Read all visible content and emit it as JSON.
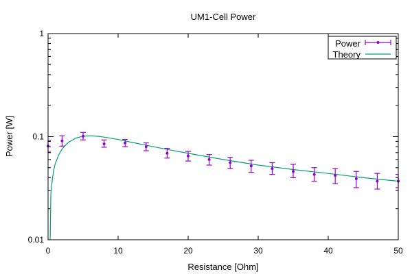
{
  "chart_data": {
    "type": "scatter",
    "title": "UM1-Cell Power",
    "xlabel": "Resistance [Ohm]",
    "ylabel": "Power [W]",
    "xlim": [
      0,
      50
    ],
    "ylim": [
      0.01,
      1
    ],
    "yscale": "log",
    "grid": false,
    "legend_position": "top-right",
    "x_ticks": [
      0,
      10,
      20,
      30,
      40,
      50
    ],
    "x_tick_labels": [
      "0",
      "10",
      "20",
      "30",
      "40",
      "50"
    ],
    "y_ticks": [
      0.01,
      0.1,
      1
    ],
    "y_tick_labels": [
      "0.01",
      "0.1",
      "1"
    ],
    "series": [
      {
        "name": "Power",
        "kind": "points-with-errorbars",
        "color": "#9400d3",
        "points": [
          {
            "x": 0,
            "y": 0.081,
            "lo": 0.071,
            "hi": 0.092
          },
          {
            "x": 2,
            "y": 0.091,
            "lo": 0.081,
            "hi": 0.102
          },
          {
            "x": 5,
            "y": 0.101,
            "lo": 0.093,
            "hi": 0.11
          },
          {
            "x": 8,
            "y": 0.085,
            "lo": 0.079,
            "hi": 0.093
          },
          {
            "x": 11,
            "y": 0.087,
            "lo": 0.08,
            "hi": 0.094
          },
          {
            "x": 14,
            "y": 0.08,
            "lo": 0.073,
            "hi": 0.087
          },
          {
            "x": 17,
            "y": 0.069,
            "lo": 0.062,
            "hi": 0.077
          },
          {
            "x": 20,
            "y": 0.065,
            "lo": 0.058,
            "hi": 0.072
          },
          {
            "x": 23,
            "y": 0.06,
            "lo": 0.053,
            "hi": 0.067
          },
          {
            "x": 26,
            "y": 0.056,
            "lo": 0.049,
            "hi": 0.063
          },
          {
            "x": 29,
            "y": 0.052,
            "lo": 0.045,
            "hi": 0.059
          },
          {
            "x": 32,
            "y": 0.049,
            "lo": 0.043,
            "hi": 0.056
          },
          {
            "x": 35,
            "y": 0.046,
            "lo": 0.04,
            "hi": 0.054
          },
          {
            "x": 38,
            "y": 0.043,
            "lo": 0.037,
            "hi": 0.05
          },
          {
            "x": 41,
            "y": 0.042,
            "lo": 0.035,
            "hi": 0.049
          },
          {
            "x": 44,
            "y": 0.039,
            "lo": 0.032,
            "hi": 0.046
          },
          {
            "x": 47,
            "y": 0.037,
            "lo": 0.031,
            "hi": 0.044
          },
          {
            "x": 50,
            "y": 0.037,
            "lo": 0.032,
            "hi": 0.043
          }
        ]
      },
      {
        "name": "Theory",
        "kind": "line",
        "color": "#009e73",
        "points": [
          {
            "x": 0.3,
            "y": 0.01
          },
          {
            "x": 0.4,
            "y": 0.028
          },
          {
            "x": 0.6,
            "y": 0.038
          },
          {
            "x": 0.8,
            "y": 0.047
          },
          {
            "x": 1,
            "y": 0.054
          },
          {
            "x": 1.5,
            "y": 0.066
          },
          {
            "x": 2,
            "y": 0.076
          },
          {
            "x": 2.5,
            "y": 0.083
          },
          {
            "x": 3,
            "y": 0.089
          },
          {
            "x": 4,
            "y": 0.097
          },
          {
            "x": 5,
            "y": 0.101
          },
          {
            "x": 6,
            "y": 0.102
          },
          {
            "x": 7,
            "y": 0.101
          },
          {
            "x": 8,
            "y": 0.099
          },
          {
            "x": 10,
            "y": 0.094
          },
          {
            "x": 12,
            "y": 0.088
          },
          {
            "x": 15,
            "y": 0.08
          },
          {
            "x": 18,
            "y": 0.073
          },
          {
            "x": 20,
            "y": 0.069
          },
          {
            "x": 25,
            "y": 0.06
          },
          {
            "x": 30,
            "y": 0.053
          },
          {
            "x": 35,
            "y": 0.048
          },
          {
            "x": 40,
            "y": 0.044
          },
          {
            "x": 45,
            "y": 0.04
          },
          {
            "x": 50,
            "y": 0.037
          }
        ]
      }
    ]
  }
}
